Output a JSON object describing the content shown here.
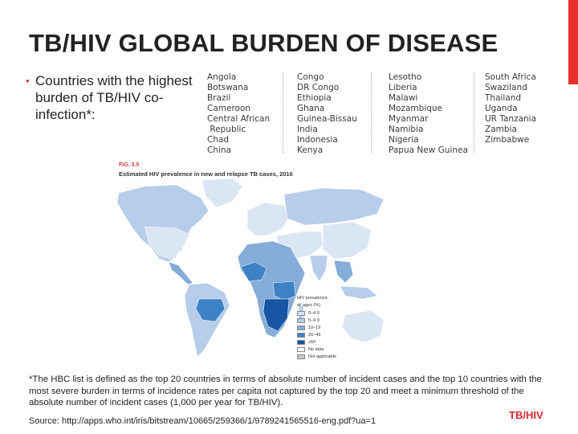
{
  "slide": {
    "title": "TB/HIV GLOBAL BURDEN OF DISEASE",
    "bullet": "Countries with the highest burden of TB/HIV co-infection*:",
    "footnote": "*The HBC list is defined as the top 20 countries in terms of absolute number of incident cases and the top 10 countries with the most severe burden in terms of incidence rates per capita not captured by the top 20 and meet a minimum threshold of the absolute number of incident cases (1,000 per year for TB/HIV).",
    "source": "Source: http://apps.who.int/iris/bitstream/10665/259366/1/9789241565516-eng.pdf?ua=1",
    "brand": "TB/HIV",
    "colors": {
      "accent": "#e8312f",
      "brand_text": "#d42a2a"
    }
  },
  "countries": {
    "col1": [
      "Angola",
      "Botswana",
      "Brazil",
      "Cameroon",
      "Central African",
      " Republic",
      "Chad",
      "China"
    ],
    "col2": [
      "Congo",
      "DR Congo",
      "Ethiopia",
      "Ghana",
      "Guinea-Bissau",
      "India",
      "Indonesia",
      "Kenya"
    ],
    "col3": [
      "Lesotho",
      "Liberia",
      "Malawi",
      "Mozambique",
      "Myanmar",
      "Namibia",
      "Nigeria",
      "Papua New Guinea"
    ],
    "col4": [
      "South Africa",
      "Swaziland",
      "Thailand",
      "Uganda",
      "UR Tanzania",
      "Zambia",
      "Zimbabwe"
    ]
  },
  "figure": {
    "label": "FIG. 3.5",
    "title": "Estimated HIV prevalence in new and relapse TB cases, 2016",
    "legend_title_1": "HIV prevalence,",
    "legend_title_2": "all ages (%)",
    "legend": [
      {
        "label": "0–4.9",
        "color": "#dbe6f4"
      },
      {
        "label": "5–9.9",
        "color": "#b7cde9"
      },
      {
        "label": "10–19",
        "color": "#86acd8"
      },
      {
        "label": "20–49",
        "color": "#3e82c6"
      },
      {
        "label": "≥50",
        "color": "#1656a3"
      },
      {
        "label": "No data",
        "color": "#ffffff"
      },
      {
        "label": "Not applicable",
        "color": "#c8c8c8"
      }
    ]
  }
}
